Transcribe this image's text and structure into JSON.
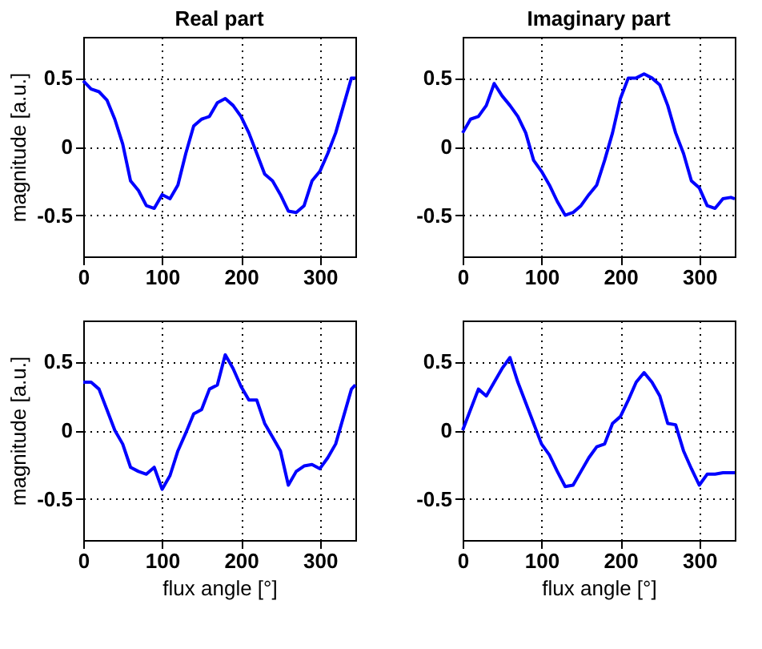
{
  "chart_data": [
    {
      "type": "line",
      "title": "Real part",
      "ylabel": "magnitude [a.u.]",
      "x": [
        0,
        10,
        20,
        30,
        40,
        50,
        60,
        70,
        80,
        90,
        100,
        110,
        120,
        130,
        140,
        150,
        160,
        170,
        180,
        190,
        200,
        210,
        220,
        230,
        240,
        250,
        260,
        270,
        280,
        290,
        300,
        310,
        320,
        330,
        340,
        345
      ],
      "series": [
        {
          "color": "#0000ff",
          "values": [
            0.48,
            0.42,
            0.4,
            0.34,
            0.2,
            0.02,
            -0.25,
            -0.32,
            -0.43,
            -0.45,
            -0.35,
            -0.38,
            -0.28,
            -0.05,
            0.15,
            0.2,
            0.22,
            0.32,
            0.35,
            0.3,
            0.22,
            0.1,
            -0.05,
            -0.2,
            -0.25,
            -0.35,
            -0.47,
            -0.48,
            -0.43,
            -0.25,
            -0.18,
            -0.05,
            0.1,
            0.3,
            0.5,
            0.5
          ]
        }
      ],
      "xlim": [
        0,
        345
      ],
      "ylim": [
        -0.8,
        0.8
      ],
      "xticks": [
        0,
        100,
        200,
        300
      ],
      "yticks": [
        -0.5,
        0,
        0.5
      ],
      "grid": true,
      "line_style": "solid"
    },
    {
      "type": "line",
      "title": "Imaginary part",
      "x": [
        0,
        10,
        20,
        30,
        40,
        50,
        60,
        70,
        80,
        90,
        100,
        110,
        120,
        130,
        140,
        150,
        160,
        170,
        180,
        190,
        200,
        210,
        220,
        230,
        240,
        250,
        260,
        270,
        280,
        290,
        300,
        310,
        320,
        330,
        340,
        345
      ],
      "series": [
        {
          "color": "#0000ff",
          "values": [
            0.1,
            0.2,
            0.22,
            0.3,
            0.46,
            0.37,
            0.3,
            0.22,
            0.1,
            -0.1,
            -0.18,
            -0.28,
            -0.4,
            -0.5,
            -0.48,
            -0.43,
            -0.35,
            -0.28,
            -0.1,
            0.1,
            0.35,
            0.5,
            0.5,
            0.53,
            0.5,
            0.45,
            0.3,
            0.1,
            -0.05,
            -0.25,
            -0.3,
            -0.43,
            -0.45,
            -0.38,
            -0.37,
            -0.38
          ]
        }
      ],
      "xlim": [
        0,
        345
      ],
      "ylim": [
        -0.8,
        0.8
      ],
      "xticks": [
        0,
        100,
        200,
        300
      ],
      "yticks": [
        -0.5,
        0,
        0.5
      ],
      "grid": true,
      "line_style": "solid"
    },
    {
      "type": "line",
      "xlabel": "flux angle [°]",
      "ylabel": "magnitude [a.u.]",
      "x": [
        0,
        10,
        20,
        30,
        40,
        50,
        60,
        70,
        80,
        90,
        100,
        110,
        120,
        130,
        140,
        150,
        160,
        170,
        180,
        190,
        200,
        210,
        220,
        230,
        240,
        250,
        260,
        270,
        280,
        290,
        300,
        310,
        320,
        330,
        340,
        345
      ],
      "series": [
        {
          "color": "#0000ff",
          "values": [
            0.35,
            0.35,
            0.3,
            0.15,
            0.0,
            -0.1,
            -0.27,
            -0.3,
            -0.32,
            -0.27,
            -0.43,
            -0.33,
            -0.15,
            -0.02,
            0.12,
            0.15,
            0.3,
            0.33,
            0.55,
            0.45,
            0.32,
            0.22,
            0.22,
            0.05,
            -0.05,
            -0.15,
            -0.4,
            -0.3,
            -0.26,
            -0.25,
            -0.28,
            -0.2,
            -0.1,
            0.1,
            0.3,
            0.33
          ]
        }
      ],
      "xlim": [
        0,
        345
      ],
      "ylim": [
        -0.8,
        0.8
      ],
      "xticks": [
        0,
        100,
        200,
        300
      ],
      "yticks": [
        -0.5,
        0,
        0.5
      ],
      "grid": true,
      "line_style": "solid"
    },
    {
      "type": "line",
      "xlabel": "flux angle [°]",
      "x": [
        0,
        10,
        20,
        30,
        40,
        50,
        60,
        70,
        80,
        90,
        100,
        110,
        120,
        130,
        140,
        150,
        160,
        170,
        180,
        190,
        200,
        210,
        220,
        230,
        240,
        250,
        260,
        270,
        280,
        290,
        300,
        310,
        320,
        330,
        340,
        345
      ],
      "series": [
        {
          "color": "#0000ff",
          "values": [
            0,
            0.15,
            0.3,
            0.25,
            0.35,
            0.45,
            0.53,
            0.35,
            0.2,
            0.05,
            -0.1,
            -0.18,
            -0.3,
            -0.41,
            -0.4,
            -0.3,
            -0.2,
            -0.12,
            -0.1,
            0.05,
            0.1,
            0.22,
            0.35,
            0.42,
            0.35,
            0.25,
            0.05,
            0.04,
            -0.15,
            -0.28,
            -0.4,
            -0.32,
            -0.32,
            -0.31,
            -0.31,
            -0.31
          ]
        }
      ],
      "xlim": [
        0,
        345
      ],
      "ylim": [
        -0.8,
        0.8
      ],
      "xticks": [
        0,
        100,
        200,
        300
      ],
      "yticks": [
        -0.5,
        0,
        0.5
      ],
      "grid": true,
      "line_style": "solid"
    }
  ]
}
